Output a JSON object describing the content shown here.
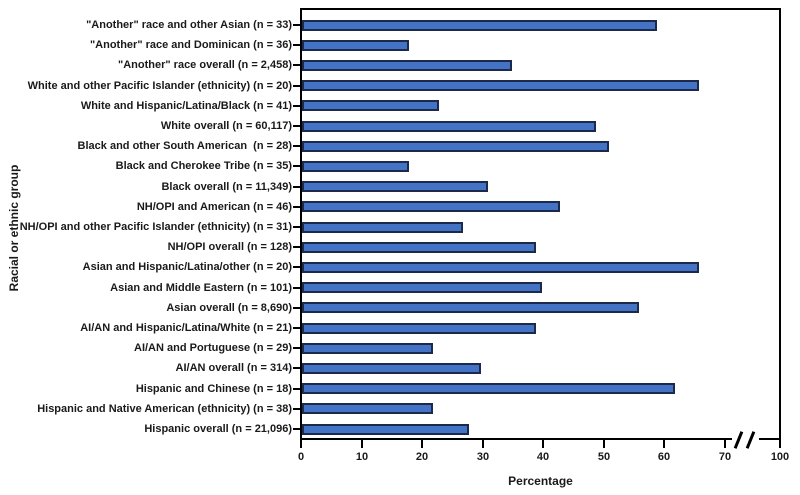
{
  "chart_data": {
    "type": "bar",
    "orientation": "horizontal",
    "title": "",
    "xlabel": "Percentage",
    "ylabel": "Racial or ethnic group",
    "x_ticks": [
      0,
      10,
      20,
      30,
      40,
      50,
      60,
      70,
      100
    ],
    "axis_break_between": [
      70,
      100
    ],
    "xlim_display": [
      0,
      70
    ],
    "grid": false,
    "legend": "none",
    "bar_fill_color": "#4472c4",
    "bar_border_color": "#1b2a4a",
    "axis_color": "#000000",
    "categories": [
      "\"Another\" race and other Asian (n = 33)",
      "\"Another\" race and Dominican (n = 36)",
      "\"Another\" race overall (n = 2,458)",
      "White and other Pacific Islander (ethnicity) (n = 20)",
      "White and Hispanic/Latina/Black (n = 41)",
      "White overall (n = 60,117)",
      "Black and other South American  (n = 28)",
      "Black and Cherokee Tribe (n = 35)",
      "Black overall (n = 11,349)",
      "NH/OPI and American (n = 46)",
      "NH/OPI and other Pacific Islander (ethnicity) (n = 31)",
      "NH/OPI overall (n = 128)",
      "Asian and Hispanic/Latina/other (n = 20)",
      "Asian and Middle Eastern (n = 101)",
      "Asian overall (n = 8,690)",
      "AI/AN and Hispanic/Latina/White (n = 21)",
      "AI/AN and Portuguese (n = 29)",
      "AI/AN overall (n = 314)",
      "Hispanic and Chinese (n = 18)",
      "Hispanic and Native American (ethnicity) (n = 38)",
      "Hispanic overall (n = 21,096)"
    ],
    "values": [
      58,
      17,
      34,
      65,
      22,
      48,
      50,
      17,
      30,
      42,
      26,
      38,
      65,
      39,
      55,
      38,
      21,
      29,
      61,
      21,
      27
    ]
  }
}
